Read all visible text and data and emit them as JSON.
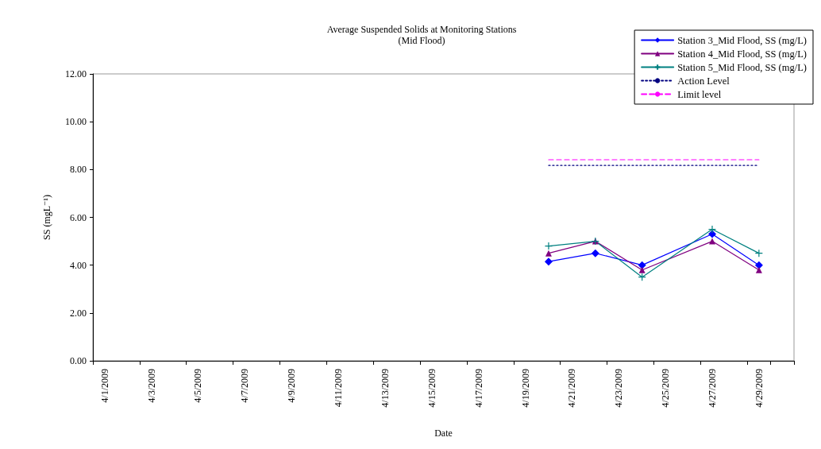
{
  "chart_data": {
    "type": "line",
    "title": "Average Suspended Solids at Monitoring Stations",
    "subtitle": "(Mid Flood)",
    "xlabel": "Date",
    "ylabel": "SS (mgL⁻¹)",
    "categories": [
      "4/1/2009",
      null,
      "4/3/2009",
      null,
      "4/5/2009",
      null,
      "4/7/2009",
      null,
      "4/9/2009",
      null,
      "4/11/2009",
      null,
      "4/13/2009",
      null,
      "4/15/2009",
      null,
      "4/17/2009",
      null,
      "4/19/2009",
      null,
      "4/21/2009",
      null,
      "4/23/2009",
      null,
      "4/25/2009",
      null,
      "4/27/2009",
      null,
      "4/29/2009",
      null
    ],
    "series": [
      {
        "name": "Station 3_Mid Flood, SS (mg/L)",
        "color": "#0000ff",
        "marker": "diamond",
        "line_style": "solid",
        "values": [
          null,
          null,
          null,
          null,
          null,
          null,
          null,
          null,
          null,
          null,
          null,
          null,
          null,
          null,
          null,
          null,
          null,
          null,
          null,
          4.15,
          null,
          4.5,
          null,
          4.0,
          null,
          null,
          5.3,
          null,
          4.0,
          null
        ]
      },
      {
        "name": "Station 4_Mid Flood, SS (mg/L)",
        "color": "#800080",
        "marker": "triangle",
        "line_style": "solid",
        "values": [
          null,
          null,
          null,
          null,
          null,
          null,
          null,
          null,
          null,
          null,
          null,
          null,
          null,
          null,
          null,
          null,
          null,
          null,
          null,
          4.5,
          null,
          5.0,
          null,
          3.8,
          null,
          null,
          5.0,
          null,
          3.8,
          null
        ]
      },
      {
        "name": "Station 5_Mid Flood, SS (mg/L)",
        "color": "#008080",
        "marker": "cross",
        "line_style": "solid",
        "values": [
          null,
          null,
          null,
          null,
          null,
          null,
          null,
          null,
          null,
          null,
          null,
          null,
          null,
          null,
          null,
          null,
          null,
          null,
          null,
          4.8,
          null,
          5.0,
          null,
          3.5,
          null,
          null,
          5.5,
          null,
          4.5,
          null
        ]
      },
      {
        "name": "Action Level",
        "color": "#000080",
        "marker": "none",
        "line_style": "dotted",
        "values": [
          null,
          null,
          null,
          null,
          null,
          null,
          null,
          null,
          null,
          null,
          null,
          null,
          null,
          null,
          null,
          null,
          null,
          null,
          null,
          8.17,
          8.17,
          8.17,
          8.17,
          8.17,
          8.17,
          8.17,
          8.17,
          8.17,
          8.17,
          null
        ]
      },
      {
        "name": "Limit level",
        "color": "#ff00ff",
        "marker": "none",
        "line_style": "dashed",
        "values": [
          null,
          null,
          null,
          null,
          null,
          null,
          null,
          null,
          null,
          null,
          null,
          null,
          null,
          null,
          null,
          null,
          null,
          null,
          null,
          8.41,
          8.41,
          8.41,
          8.41,
          8.41,
          8.41,
          8.41,
          8.41,
          8.41,
          8.41,
          null
        ]
      }
    ],
    "ylim": [
      0,
      12
    ],
    "yticks": [
      {
        "value": 0,
        "label": "0.00"
      },
      {
        "value": 2,
        "label": "2.00"
      },
      {
        "value": 4,
        "label": "4.00"
      },
      {
        "value": 6,
        "label": "6.00"
      },
      {
        "value": 8,
        "label": "8.00"
      },
      {
        "value": 10,
        "label": "10.00"
      },
      {
        "value": 12,
        "label": "12.00"
      }
    ],
    "grid": false,
    "legend": "top right"
  }
}
